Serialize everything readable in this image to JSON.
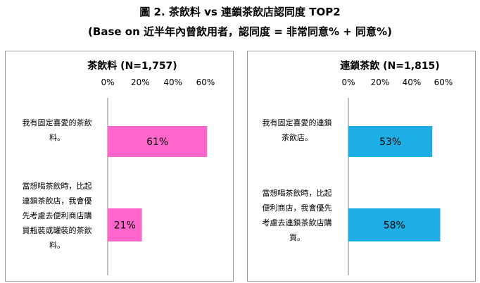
{
  "header": {
    "title": "圖 2. 茶飲料 vs 連鎖茶飲店認同度 TOP2",
    "subtitle": "(Base on 近半年內曾飲用者，認同度 = 非常同意% + 同意%)"
  },
  "chart_data": [
    {
      "type": "bar",
      "orientation": "horizontal",
      "title": "茶飲料 (N=1,757)",
      "xticks": [
        "0%",
        "20%",
        "40%",
        "60%"
      ],
      "xlim": [
        0,
        60
      ],
      "categories": [
        [
          "我有固定喜愛的茶飲",
          "料。"
        ],
        [
          "當想喝茶飲時，比起",
          "連鎖茶飲店，我會優",
          "先考慮去便利商店購",
          "買瓶裝或罐裝的茶飲",
          "料。"
        ]
      ],
      "values": [
        61,
        21
      ],
      "data_labels": [
        "61%",
        "21%"
      ],
      "color": "#FF66CC"
    },
    {
      "type": "bar",
      "orientation": "horizontal",
      "title": "連鎖茶飲 (N=1,815)",
      "xticks": [
        "0%",
        "20%",
        "40%",
        "60%"
      ],
      "xlim": [
        0,
        60
      ],
      "categories": [
        [
          "我有固定喜愛的連鎖",
          "茶飲店。"
        ],
        [
          "當想喝茶飲時，比起",
          "便利商店，我會優先",
          "考慮去連鎖茶飲店購",
          "買。"
        ]
      ],
      "values": [
        53,
        58
      ],
      "data_labels": [
        "53%",
        "58%"
      ],
      "color": "#1EAEE6"
    }
  ]
}
